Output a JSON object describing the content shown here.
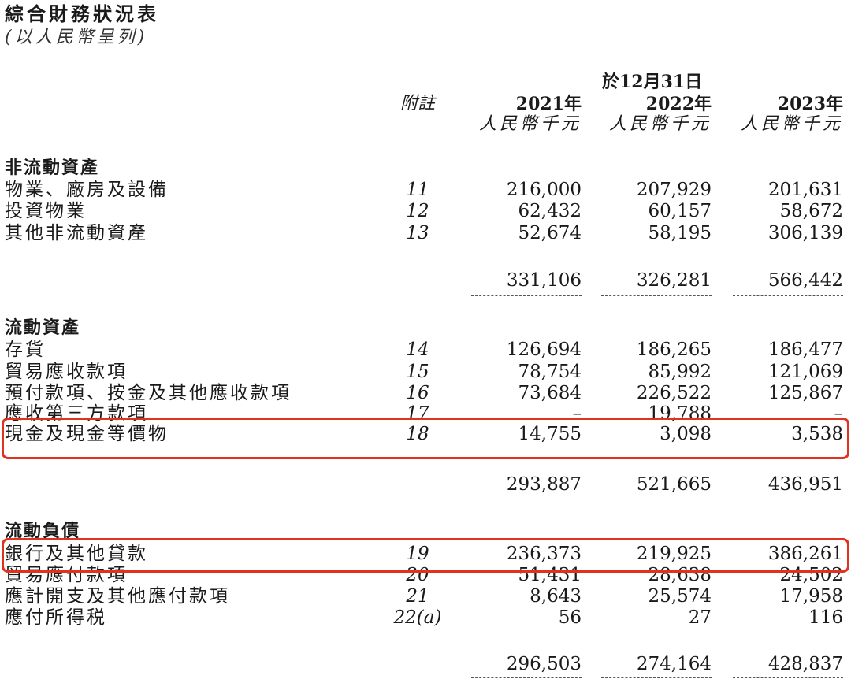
{
  "title": "綜合財務狀況表",
  "subtitle": "(以人民幣呈列)",
  "header": {
    "as_at": "於12月31日",
    "note_label": "附註",
    "years": [
      "2021年",
      "2022年",
      "2023年"
    ],
    "unit": "人民幣千元"
  },
  "sections": [
    {
      "heading": "非流動資產",
      "rows": [
        {
          "label": "物業、廠房及設備",
          "note": "11",
          "values": [
            "216,000",
            "207,929",
            "201,631"
          ]
        },
        {
          "label": "投資物業",
          "note": "12",
          "values": [
            "62,432",
            "60,157",
            "58,672"
          ]
        },
        {
          "label": "其他非流動資產",
          "note": "13",
          "values": [
            "52,674",
            "58,195",
            "306,139"
          ]
        }
      ],
      "total": [
        "331,106",
        "326,281",
        "566,442"
      ]
    },
    {
      "heading": "流動資產",
      "rows": [
        {
          "label": "存貨",
          "note": "14",
          "values": [
            "126,694",
            "186,265",
            "186,477"
          ]
        },
        {
          "label": "貿易應收款項",
          "note": "15",
          "values": [
            "78,754",
            "85,992",
            "121,069"
          ]
        },
        {
          "label": "預付款項、按金及其他應收款項",
          "note": "16",
          "values": [
            "73,684",
            "226,522",
            "125,867"
          ]
        },
        {
          "label": "應收第三方款項",
          "note": "17",
          "values": [
            "–",
            "19,788",
            "–"
          ]
        },
        {
          "label": "現金及現金等價物",
          "note": "18",
          "values": [
            "14,755",
            "3,098",
            "3,538"
          ],
          "highlighted": true
        }
      ],
      "total": [
        "293,887",
        "521,665",
        "436,951"
      ]
    },
    {
      "heading": "流動負債",
      "rows": [
        {
          "label": "銀行及其他貸款",
          "note": "19",
          "values": [
            "236,373",
            "219,925",
            "386,261"
          ],
          "highlighted": true
        },
        {
          "label": "貿易應付款項",
          "note": "20",
          "values": [
            "51,431",
            "28,638",
            "24,502"
          ]
        },
        {
          "label": "應計開支及其他應付款項",
          "note": "21",
          "values": [
            "8,643",
            "25,574",
            "17,958"
          ]
        },
        {
          "label": "應付所得税",
          "note": "22(a)",
          "values": [
            "56",
            "27",
            "116"
          ]
        }
      ],
      "total": [
        "296,503",
        "274,164",
        "428,837"
      ]
    }
  ],
  "colors": {
    "highlight_box": "#e0321f",
    "text": "#1a1a1a"
  }
}
